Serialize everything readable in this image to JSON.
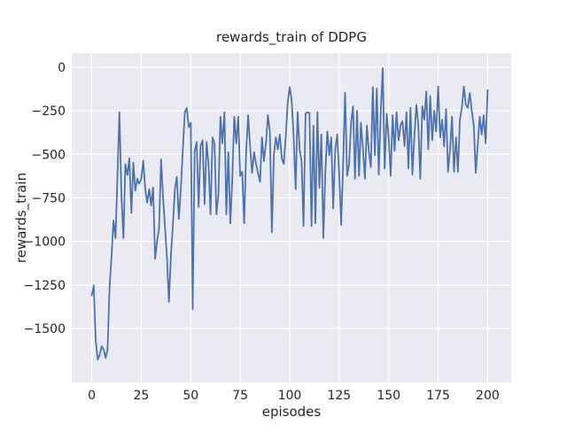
{
  "figure": {
    "title": "rewards_train of DDPG",
    "xlabel": "episodes",
    "ylabel": "rewards_train"
  },
  "chart_data": {
    "type": "line",
    "title": "rewards_train of DDPG",
    "xlabel": "episodes",
    "ylabel": "rewards_train",
    "grid": true,
    "legend": false,
    "x_ticks": [
      0,
      25,
      50,
      75,
      100,
      125,
      150,
      175,
      200
    ],
    "x_tick_labels": [
      "0",
      "25",
      "50",
      "75",
      "100",
      "125",
      "150",
      "175",
      "200"
    ],
    "y_ticks": [
      0,
      -250,
      -500,
      -750,
      -1000,
      -1250,
      -1500
    ],
    "y_tick_labels": [
      "0",
      "−250",
      "−500",
      "−750",
      "−1000",
      "−1250",
      "−1500"
    ],
    "xlim": [
      -10.1,
      211.9
    ],
    "ylim": [
      -1810,
      81
    ],
    "style": {
      "fig_bg": "#ffffff",
      "plot_bg": "#eaeaf2",
      "grid_color": "#ffffff",
      "text_color": "#262626",
      "line_color": "#4c72b0"
    },
    "series": [
      {
        "name": "rewards_train",
        "color": "#4c72b0",
        "x_start": 0,
        "x_step": 1,
        "values": [
          -1310,
          -1252,
          -1566,
          -1679,
          -1653,
          -1602,
          -1619,
          -1669,
          -1620,
          -1261,
          -1083,
          -880,
          -981,
          -620,
          -258,
          -743,
          -981,
          -556,
          -620,
          -522,
          -837,
          -548,
          -709,
          -640,
          -670,
          -641,
          -536,
          -700,
          -777,
          -700,
          -794,
          -690,
          -1100,
          -998,
          -930,
          -530,
          -743,
          -913,
          -1100,
          -1347,
          -1083,
          -900,
          -700,
          -630,
          -871,
          -700,
          -480,
          -258,
          -233,
          -344,
          -318,
          -1390,
          -480,
          -429,
          -803,
          -450,
          -420,
          -786,
          -429,
          -556,
          -845,
          -403,
          -437,
          -845,
          -726,
          -284,
          -437,
          -258,
          -845,
          -488,
          -896,
          -641,
          -284,
          -437,
          -284,
          -624,
          -600,
          -896,
          -488,
          -275,
          -454,
          -607,
          -488,
          -556,
          -607,
          -658,
          -403,
          -539,
          -437,
          -275,
          -369,
          -947,
          -505,
          -403,
          -471,
          -386,
          -522,
          -556,
          -403,
          -199,
          -114,
          -190,
          -403,
          -700,
          -258,
          -471,
          -539,
          -913,
          -267,
          -258,
          -262,
          -913,
          -335,
          -896,
          -258,
          -692,
          -386,
          -981,
          -607,
          -369,
          -505,
          -403,
          -811,
          -471,
          -386,
          -607,
          -905,
          -556,
          -145,
          -624,
          -556,
          -318,
          -224,
          -641,
          -250,
          -624,
          -318,
          -471,
          -641,
          -335,
          -488,
          -573,
          -114,
          -505,
          -122,
          -616,
          -258,
          -5,
          -582,
          -267,
          -403,
          -624,
          -276,
          -480,
          -258,
          -420,
          -335,
          -310,
          -454,
          -258,
          -582,
          -233,
          -616,
          -400,
          -216,
          -335,
          -641,
          -224,
          -300,
          -139,
          -471,
          -165,
          -420,
          -250,
          -369,
          -110,
          -403,
          -301,
          -454,
          -241,
          -600,
          -471,
          -284,
          -600,
          -403,
          -600,
          -301,
          -230,
          -110,
          -216,
          -233,
          -148,
          -250,
          -335,
          -607,
          -450,
          -284,
          -386,
          -276,
          -437,
          -131
        ]
      }
    ]
  }
}
